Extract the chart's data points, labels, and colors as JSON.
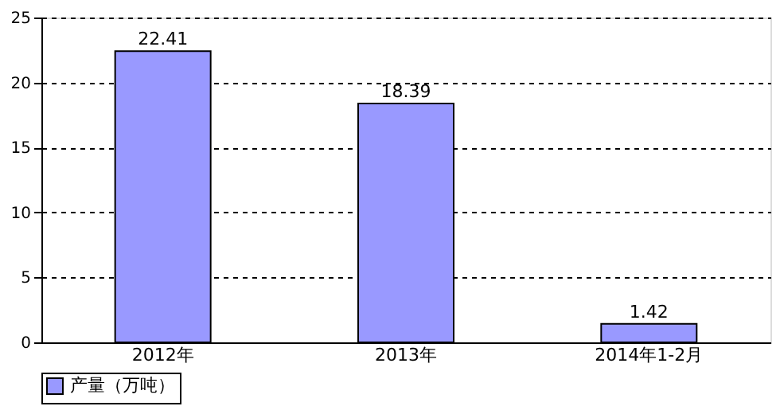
{
  "chart_data": {
    "type": "bar",
    "categories": [
      "2012年",
      "2013年",
      "2014年1-2月"
    ],
    "series": [
      {
        "name": "产量（万吨）",
        "color": "#9999ff",
        "values": [
          22.41,
          18.39,
          1.42
        ]
      }
    ],
    "ylim": [
      0,
      25
    ],
    "yticks": [
      0,
      5,
      10,
      15,
      20,
      25
    ],
    "grid": "y",
    "legend": "bottom",
    "data_labels": true
  }
}
